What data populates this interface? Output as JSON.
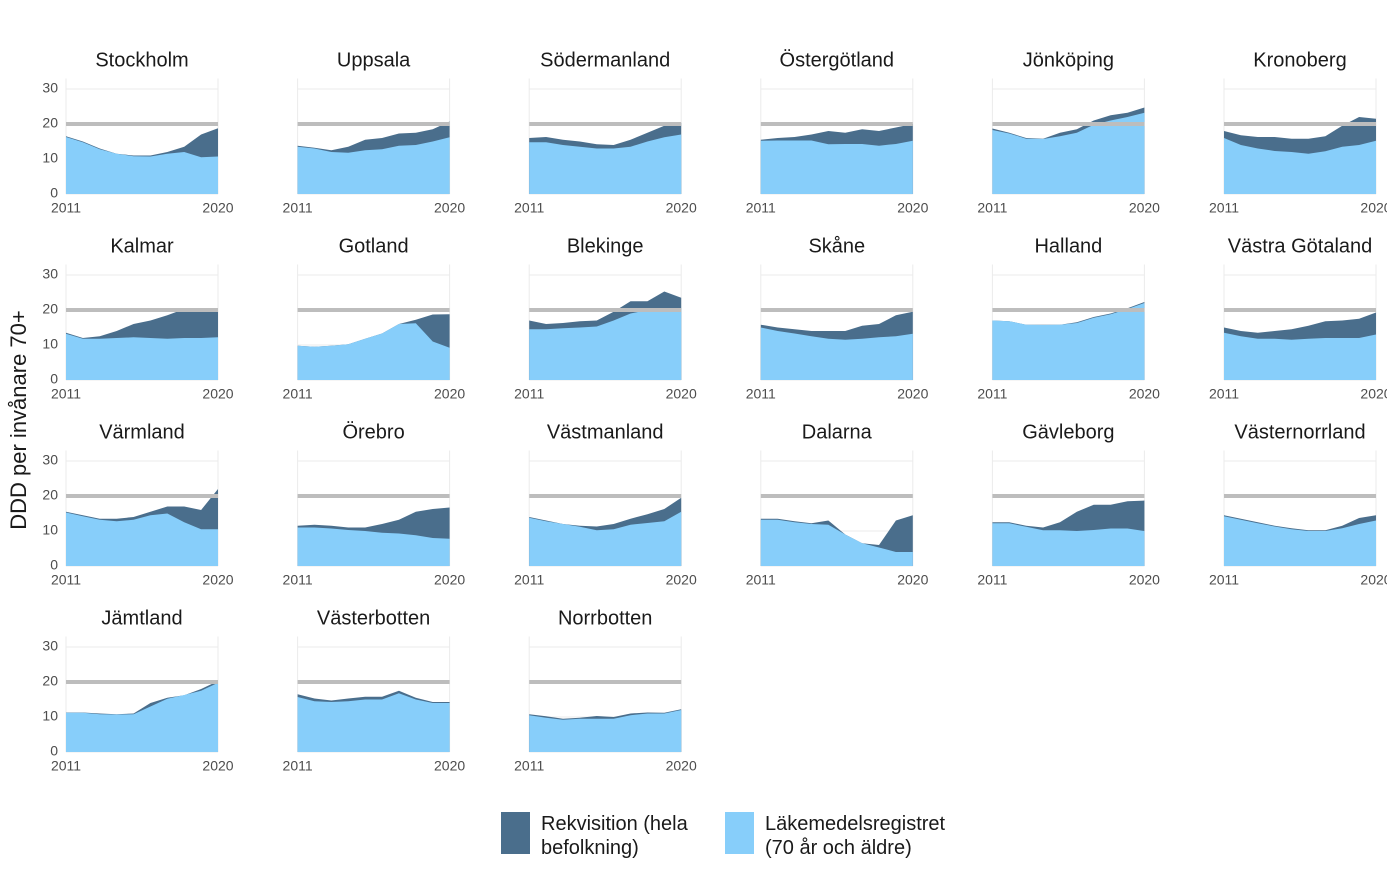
{
  "chart_data": {
    "type": "area",
    "y_label": "DDD per invånare 70+",
    "x": [
      2011,
      2012,
      2013,
      2014,
      2015,
      2016,
      2017,
      2018,
      2019,
      2020
    ],
    "xlim": [
      2011,
      2020
    ],
    "xticks": [
      2011,
      2020
    ],
    "ylim": [
      0,
      33
    ],
    "yticks": [
      0,
      10,
      20,
      30
    ],
    "reference_line": 20,
    "reference_color": "#bdbdbd",
    "grid": true,
    "series": [
      {
        "name": "Rekvisition (hela befolkning)",
        "color": "#4a6e8c"
      },
      {
        "name": "Läkemedelsregistret (70 år och äldre)",
        "color": "#87cefa"
      }
    ],
    "facets": [
      {
        "title": "Stockholm",
        "values": [
          [
            16.5,
            15,
            13,
            11.5,
            11,
            11,
            12,
            13.5,
            17,
            18.8
          ],
          [
            16.3,
            14.8,
            12.8,
            11.5,
            10.8,
            10.7,
            11.5,
            12,
            10.5,
            10.7
          ]
        ]
      },
      {
        "title": "Uppsala",
        "values": [
          [
            13.8,
            13.2,
            12.5,
            13.5,
            15.5,
            16,
            17.3,
            17.5,
            18.5,
            20.7
          ],
          [
            13.5,
            13,
            12,
            11.8,
            12.5,
            12.8,
            13.8,
            14,
            15,
            16.2
          ]
        ]
      },
      {
        "title": "Södermanland",
        "values": [
          [
            16,
            16.3,
            15.5,
            15,
            14.2,
            14,
            15.5,
            17.5,
            19.5,
            20.3
          ],
          [
            14.8,
            14.8,
            14,
            13.5,
            13,
            13,
            13.5,
            15,
            16.2,
            17
          ]
        ]
      },
      {
        "title": "Östergötland",
        "values": [
          [
            15.5,
            16,
            16.3,
            17,
            18,
            17.5,
            18.5,
            18,
            19,
            20
          ],
          [
            15.2,
            15.3,
            15.3,
            15.3,
            14.2,
            14.3,
            14.3,
            13.8,
            14.3,
            15.2
          ]
        ]
      },
      {
        "title": "Jönköping",
        "values": [
          [
            18.7,
            17.5,
            16,
            15.8,
            17.5,
            18.5,
            21,
            22.5,
            23.2,
            24.7
          ],
          [
            18.3,
            17.3,
            15.8,
            15.7,
            16.5,
            17.5,
            19.8,
            21,
            22,
            23.2
          ]
        ]
      },
      {
        "title": "Kronoberg",
        "values": [
          [
            18,
            16.8,
            16.3,
            16.3,
            15.8,
            15.8,
            16.5,
            19.5,
            22,
            21.5
          ],
          [
            16,
            14,
            13,
            12.3,
            12,
            11.5,
            12.2,
            13.5,
            14,
            15.2
          ]
        ]
      },
      {
        "title": "Kalmar",
        "values": [
          [
            13.5,
            12,
            12.5,
            14,
            16,
            17,
            18.5,
            20.3,
            20.5,
            20
          ],
          [
            13.2,
            11.8,
            11.8,
            12,
            12.2,
            12,
            11.8,
            12,
            12,
            12.2
          ]
        ]
      },
      {
        "title": "Gotland",
        "values": [
          [
            9.8,
            9.5,
            9.8,
            10.2,
            11.8,
            13.3,
            16,
            17.2,
            18.7,
            18.8
          ],
          [
            9.8,
            9.5,
            9.8,
            10.2,
            11.8,
            13.3,
            16,
            16.2,
            11,
            9.2
          ]
        ]
      },
      {
        "title": "Blekinge",
        "values": [
          [
            17,
            16,
            16.3,
            16.8,
            17,
            19.5,
            22.5,
            22.5,
            25.3,
            23.5
          ],
          [
            14.5,
            14.5,
            14.8,
            15,
            15.3,
            17,
            19,
            20,
            19.5,
            20
          ]
        ]
      },
      {
        "title": "Skåne",
        "values": [
          [
            15.8,
            15,
            14.5,
            14,
            14,
            14,
            15.5,
            16,
            18.5,
            19.5
          ],
          [
            15,
            14,
            13.3,
            12.5,
            11.8,
            11.5,
            11.8,
            12.2,
            12.5,
            13.2
          ]
        ]
      },
      {
        "title": "Halland",
        "values": [
          [
            17,
            16.8,
            15.8,
            15.8,
            15.8,
            16.5,
            18,
            19,
            20.5,
            22.3
          ],
          [
            17,
            16.8,
            15.8,
            15.7,
            15.8,
            16.3,
            17.8,
            18.8,
            20.3,
            22
          ]
        ]
      },
      {
        "title": "Västra Götaland",
        "values": [
          [
            15,
            14,
            13.5,
            14,
            14.5,
            15.5,
            16.8,
            17,
            17.5,
            19.3
          ],
          [
            13.5,
            12.5,
            11.8,
            11.8,
            11.5,
            11.8,
            12,
            12,
            12,
            13
          ]
        ]
      },
      {
        "title": "Värmland",
        "values": [
          [
            15.5,
            14.5,
            13.5,
            13.5,
            14,
            15.5,
            17,
            17,
            16,
            22
          ],
          [
            15.3,
            14.2,
            13.2,
            12.8,
            13.2,
            14.5,
            15,
            12.5,
            10.5,
            10.5
          ]
        ]
      },
      {
        "title": "Örebro",
        "values": [
          [
            11.5,
            11.8,
            11.5,
            11,
            11,
            12,
            13.2,
            15.5,
            16.3,
            16.7
          ],
          [
            11,
            11,
            10.7,
            10.3,
            10,
            9.5,
            9.3,
            8.8,
            8,
            7.8
          ]
        ]
      },
      {
        "title": "Västmanland",
        "values": [
          [
            14,
            13,
            12,
            11.5,
            11.3,
            12,
            13.5,
            14.8,
            16.3,
            19.5
          ],
          [
            13.8,
            12.8,
            12,
            11.2,
            10.2,
            10.5,
            11.8,
            12.3,
            12.8,
            15.5
          ]
        ]
      },
      {
        "title": "Dalarna",
        "values": [
          [
            13.5,
            13.5,
            12.8,
            12.2,
            13,
            9,
            6.5,
            6,
            13,
            14.5
          ],
          [
            13.2,
            13.2,
            12.5,
            12,
            11.8,
            9,
            6.5,
            5.3,
            4,
            4
          ]
        ]
      },
      {
        "title": "Gävleborg",
        "values": [
          [
            12.5,
            12.5,
            11.5,
            11,
            12.5,
            15.5,
            17.5,
            17.5,
            18.5,
            18.7
          ],
          [
            12.2,
            12.2,
            11.2,
            10.2,
            10.2,
            10,
            10.3,
            10.7,
            10.7,
            10
          ]
        ]
      },
      {
        "title": "Västernorrland",
        "values": [
          [
            14.5,
            13.5,
            12.5,
            11.5,
            10.8,
            10.2,
            10.2,
            11.5,
            13.7,
            14.5
          ],
          [
            14.2,
            13.2,
            12.2,
            11.3,
            10.5,
            10,
            10,
            10.8,
            12,
            13
          ]
        ]
      },
      {
        "title": "Jämtland",
        "values": [
          [
            11.3,
            11.3,
            11,
            10.8,
            11,
            14,
            15.5,
            16.2,
            18,
            20.3
          ],
          [
            11.2,
            11.2,
            10.8,
            10.7,
            10.8,
            13,
            15.2,
            16.3,
            17.5,
            19.8
          ]
        ]
      },
      {
        "title": "Västerbotten",
        "values": [
          [
            16.5,
            15.3,
            14.7,
            15.3,
            15.8,
            15.8,
            17.5,
            15.5,
            14.3,
            14.3
          ],
          [
            15.7,
            14.5,
            14.3,
            14.5,
            15,
            15,
            16.8,
            15,
            14,
            14
          ]
        ]
      },
      {
        "title": "Norrbotten",
        "values": [
          [
            10.8,
            10.2,
            9.5,
            9.8,
            10.3,
            10,
            11,
            11.3,
            11.2,
            12.2
          ],
          [
            10.5,
            9.8,
            9.2,
            9.5,
            9.5,
            9.5,
            10.5,
            11,
            11,
            12
          ]
        ]
      }
    ]
  }
}
